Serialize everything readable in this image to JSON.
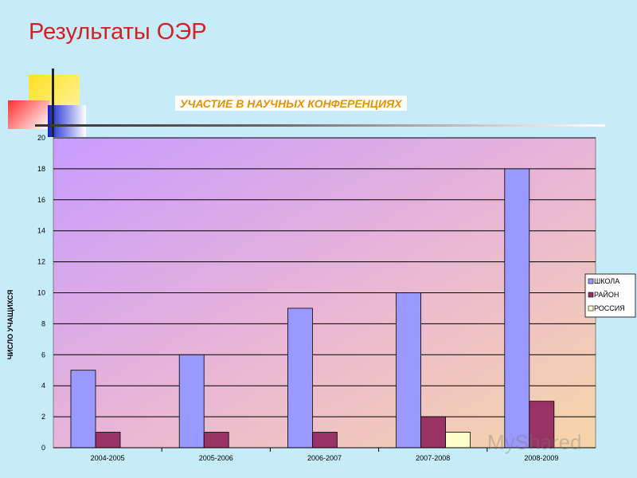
{
  "slide": {
    "title": "Результаты ОЭР",
    "watermark": "MyShared"
  },
  "colors": {
    "background": "#c7ecf9",
    "title": "#d42020",
    "chart_title": "#e69200",
    "series": [
      "#9999ff",
      "#993366",
      "#ffffcc"
    ]
  },
  "chart_data": {
    "type": "bar",
    "title": "УЧАСТИЕ В НАУЧНЫХ КОНФЕРЕНЦИЯХ",
    "xlabel": "",
    "ylabel": "ЧИСЛО УЧАЩИХСЯ",
    "categories": [
      "2004-2005",
      "2005-2006",
      "2006-2007",
      "2007-2008",
      "2008-2009"
    ],
    "series": [
      {
        "name": "ШКОЛА",
        "values": [
          5,
          6,
          9,
          10,
          18
        ]
      },
      {
        "name": "РАЙОН",
        "values": [
          1,
          1,
          1,
          2,
          3
        ]
      },
      {
        "name": "РОССИЯ",
        "values": [
          0,
          0,
          0,
          1,
          0
        ]
      }
    ],
    "ylim": [
      0,
      20
    ],
    "yticks": [
      0,
      2,
      4,
      6,
      8,
      10,
      12,
      14,
      16,
      18,
      20
    ],
    "grid": true,
    "legend": "right"
  }
}
